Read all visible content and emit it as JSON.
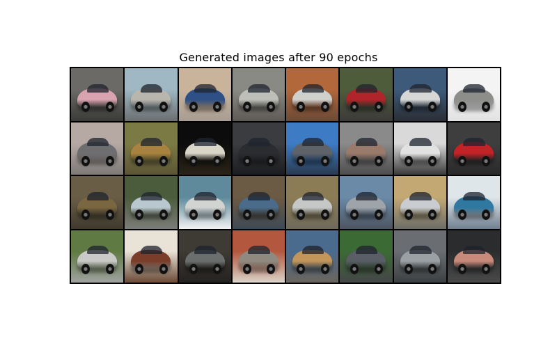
{
  "title": "Generated images after 90 epochs",
  "grid": {
    "rows": 4,
    "cols": 8,
    "tiles": [
      {
        "bg": [
          "#6c6a66",
          "#3a3a38"
        ],
        "car": "#d9a3b0"
      },
      {
        "bg": [
          "#9fb8c4",
          "#6b6f70"
        ],
        "car": "#b9b6ad"
      },
      {
        "bg": [
          "#c9b49b",
          "#a89d93"
        ],
        "car": "#2d4f86"
      },
      {
        "bg": [
          "#8a8a84",
          "#5e5a55"
        ],
        "car": "#bfbfba"
      },
      {
        "bg": [
          "#b2683a",
          "#6a4a36"
        ],
        "car": "#cfcfcc"
      },
      {
        "bg": [
          "#4f5c3c",
          "#3c3a38"
        ],
        "car": "#b0242a"
      },
      {
        "bg": [
          "#3e5a7a",
          "#2a2e35"
        ],
        "car": "#d7d8d6"
      },
      {
        "bg": [
          "#f4f4f4",
          "#e2e2e2"
        ],
        "car": "#8d8d8a"
      },
      {
        "bg": [
          "#b6a9a4",
          "#7e7a78"
        ],
        "car": "#6e6e70"
      },
      {
        "bg": [
          "#7c7a44",
          "#5c5535"
        ],
        "car": "#a8823e"
      },
      {
        "bg": [
          "#0c0c0c",
          "#2a2418"
        ],
        "car": "#d9d6c8"
      },
      {
        "bg": [
          "#3a3c40",
          "#1c1d20"
        ],
        "car": "#2a2c30"
      },
      {
        "bg": [
          "#3d7cc4",
          "#2a3a4f"
        ],
        "car": "#5f6369"
      },
      {
        "bg": [
          "#8a8a8a",
          "#4e4e50"
        ],
        "car": "#9a7a6a"
      },
      {
        "bg": [
          "#d9d9d9",
          "#3a3a3a"
        ],
        "car": "#e2e2e2"
      },
      {
        "bg": [
          "#3e3e3e",
          "#2a2a2a"
        ],
        "car": "#c32226"
      },
      {
        "bg": [
          "#6a5d45",
          "#3f3a2e"
        ],
        "car": "#7a6640"
      },
      {
        "bg": [
          "#4b5c3c",
          "#7c7c78"
        ],
        "car": "#b9c8cf"
      },
      {
        "bg": [
          "#5e8a9c",
          "#f2f2f2"
        ],
        "car": "#d2d4d2"
      },
      {
        "bg": [
          "#6b5a44",
          "#3e4a56"
        ],
        "car": "#4a6c8a"
      },
      {
        "bg": [
          "#8c7c56",
          "#6e6a5a"
        ],
        "car": "#c6c8c8"
      },
      {
        "bg": [
          "#6a8aa8",
          "#4e5460"
        ],
        "car": "#9ea4aa"
      },
      {
        "bg": [
          "#c3a874",
          "#6c6e68"
        ],
        "car": "#c9ccd0"
      },
      {
        "bg": [
          "#dfe6ea",
          "#708090"
        ],
        "car": "#2f78a0"
      },
      {
        "bg": [
          "#5f7a42",
          "#a0a2a0"
        ],
        "car": "#c9c9c7"
      },
      {
        "bg": [
          "#e9e2d6",
          "#6a4a36"
        ],
        "car": "#7a3d2a"
      },
      {
        "bg": [
          "#3e3a34",
          "#242220"
        ],
        "car": "#6a6e6c"
      },
      {
        "bg": [
          "#b3573f",
          "#d9d4c8"
        ],
        "car": "#8e8a80"
      },
      {
        "bg": [
          "#4a6a8e",
          "#6b655c"
        ],
        "car": "#c2955a"
      },
      {
        "bg": [
          "#3c6a34",
          "#444648"
        ],
        "car": "#585d66"
      },
      {
        "bg": [
          "#6a6e72",
          "#3c4042"
        ],
        "car": "#9aa0a4"
      },
      {
        "bg": [
          "#2a2c2e",
          "#4a4a4a"
        ],
        "car": "#c88a7a"
      }
    ]
  }
}
